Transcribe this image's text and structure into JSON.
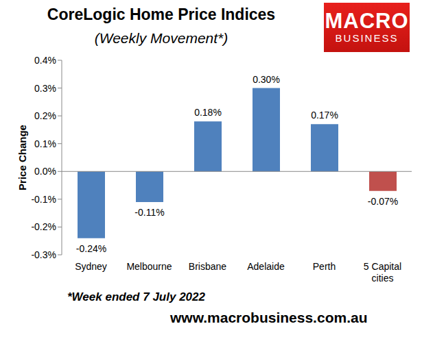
{
  "chart_data": {
    "type": "bar",
    "title": "CoreLogic Home Price Indices",
    "subtitle": "(Weekly Movement*)",
    "y_label": "Price Change",
    "footnote": "*Week ended 7 July 2022",
    "source": "www.macrobusiness.com.au",
    "logo": [
      "MACRO",
      "BUSINESS"
    ],
    "categories": [
      "Sydney",
      "Melbourne",
      "Brisbane",
      "Adelaide",
      "Perth",
      "5 Capital cities"
    ],
    "values": [
      -0.24,
      -0.11,
      0.18,
      0.3,
      0.17,
      -0.07
    ],
    "value_labels": [
      "-0.24%",
      "-0.11%",
      "0.18%",
      "0.30%",
      "0.17%",
      "-0.07%"
    ],
    "colors": [
      "#4f81bd",
      "#4f81bd",
      "#4f81bd",
      "#4f81bd",
      "#4f81bd",
      "#c0504d"
    ],
    "ylim": [
      -0.3,
      0.4
    ],
    "yticks": [
      {
        "value": -0.3,
        "label": "-0.3%"
      },
      {
        "value": -0.2,
        "label": "-0.2%"
      },
      {
        "value": -0.1,
        "label": "-0.1%"
      },
      {
        "value": 0,
        "label": "0.0%"
      },
      {
        "value": 0.1,
        "label": "0.1%"
      },
      {
        "value": 0.2,
        "label": "0.2%"
      },
      {
        "value": 0.3,
        "label": "0.3%"
      },
      {
        "value": 0.4,
        "label": "0.4%"
      }
    ],
    "grid": false,
    "data_labels": true
  }
}
